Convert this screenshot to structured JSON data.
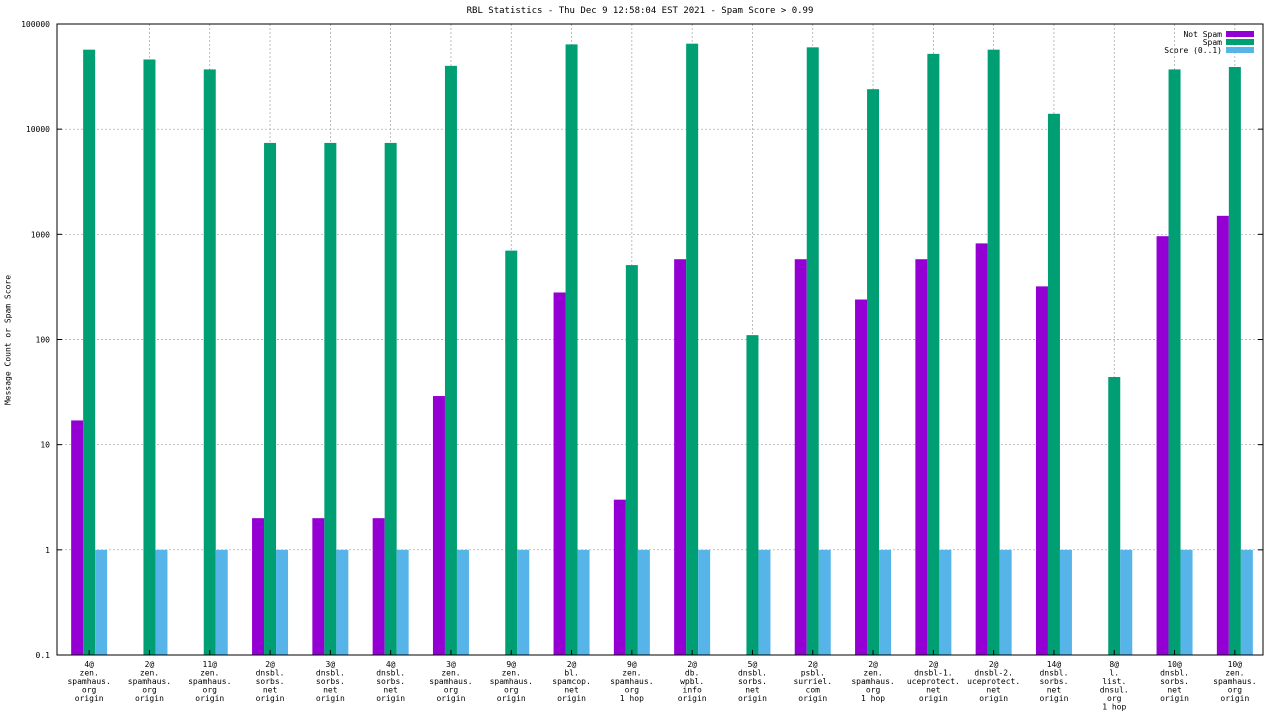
{
  "chart_data": {
    "type": "bar",
    "title": "RBL Statistics - Thu Dec  9 12:58:04 EST 2021 - Spam Score > 0.99",
    "ylabel": "Message Count or Spam Score",
    "xlabel": "",
    "y_scale": "log",
    "ylim": [
      0.1,
      100000
    ],
    "y_ticks": [
      "0.1",
      "1",
      "10",
      "100",
      "1000",
      "10000",
      "100000"
    ],
    "grid": true,
    "legend_position": "top-right",
    "categories": [
      [
        "4@",
        "zen.",
        "spamhaus.",
        "org",
        "origin"
      ],
      [
        "2@",
        "zen.",
        "spamhaus.",
        "org",
        "origin"
      ],
      [
        "11@",
        "zen.",
        "spamhaus.",
        "org",
        "origin"
      ],
      [
        "2@",
        "dnsbl.",
        "sorbs.",
        "net",
        "origin"
      ],
      [
        "3@",
        "dnsbl.",
        "sorbs.",
        "net",
        "origin"
      ],
      [
        "4@",
        "dnsbl.",
        "sorbs.",
        "net",
        "origin"
      ],
      [
        "3@",
        "zen.",
        "spamhaus.",
        "org",
        "origin"
      ],
      [
        "9@",
        "zen.",
        "spamhaus.",
        "org",
        "origin"
      ],
      [
        "2@",
        "bl.",
        "spamcop.",
        "net",
        "origin"
      ],
      [
        "9@",
        "zen.",
        "spamhaus.",
        "org",
        "1 hop"
      ],
      [
        "2@",
        "db.",
        "wpbl.",
        "info",
        "origin"
      ],
      [
        "5@",
        "dnsbl.",
        "sorbs.",
        "net",
        "origin"
      ],
      [
        "2@",
        "psbl.",
        "surriel.",
        "com",
        "origin"
      ],
      [
        "2@",
        "zen.",
        "spamhaus.",
        "org",
        "1 hop"
      ],
      [
        "2@",
        "dnsbl-1.",
        "uceprotect.",
        "net",
        "origin"
      ],
      [
        "2@",
        "dnsbl-2.",
        "uceprotect.",
        "net",
        "origin"
      ],
      [
        "14@",
        "dnsbl.",
        "sorbs.",
        "net",
        "origin"
      ],
      [
        "8@",
        "l.",
        "list.",
        "dnsul.",
        "org",
        "1 hop"
      ],
      [
        "10@",
        "dnsbl.",
        "sorbs.",
        "net",
        "origin"
      ],
      [
        "10@",
        "zen.",
        "spamhaus.",
        "org",
        "origin"
      ]
    ],
    "series": [
      {
        "name": "Not Spam",
        "color": "#9400d3",
        "values": [
          17,
          null,
          null,
          2,
          2,
          2,
          29,
          null,
          280,
          3,
          580,
          null,
          580,
          240,
          580,
          820,
          320,
          null,
          960,
          1500
        ]
      },
      {
        "name": "Spam",
        "color": "#009e73",
        "values": [
          57000,
          46000,
          37000,
          7400,
          7400,
          7400,
          40000,
          700,
          64000,
          510,
          65000,
          110,
          60000,
          24000,
          52000,
          57000,
          14000,
          44,
          37000,
          39000
        ]
      },
      {
        "name": "Score (0..1)",
        "color": "#56b4e9",
        "values": [
          1,
          1,
          1,
          1,
          1,
          1,
          1,
          1,
          1,
          1,
          1,
          1,
          1,
          1,
          1,
          1,
          1,
          1,
          1,
          1
        ]
      }
    ]
  }
}
